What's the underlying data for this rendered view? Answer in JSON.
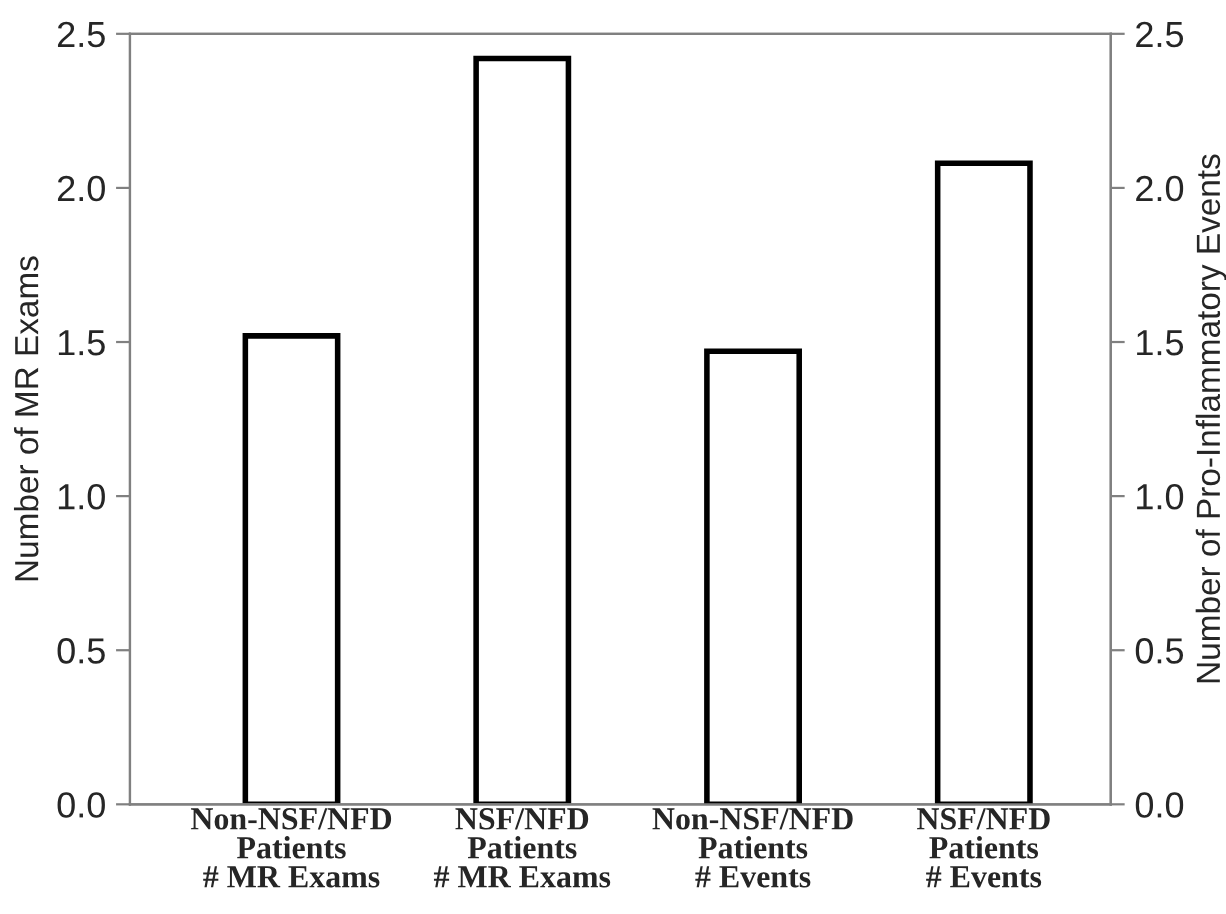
{
  "chart_data": {
    "type": "bar",
    "xlabel": null,
    "ylabel": "Number of MR Exams",
    "y2label": "Number of Pro-Inflammatory Events",
    "categories": [
      "Non-NSF/NFD\nPatients\n# MR Exams",
      "NSF/NFD\nPatients\n# MR Exams",
      "Non-NSF/NFD\nPatients\n# Events",
      "NSF/NFD\nPatients\n# Events"
    ],
    "series": [
      {
        "color": "#ffffff",
        "axis": "y",
        "values": [
          1.52,
          2.42,
          null,
          null
        ]
      },
      {
        "color": "#ffffff",
        "axis": "y2",
        "values": [
          null,
          null,
          1.47,
          2.08
        ]
      }
    ],
    "ylim": [
      0,
      2.5
    ],
    "yticks": [
      {
        "value": 0,
        "label": "0.0"
      },
      {
        "value": 0.5,
        "label": "0.5"
      },
      {
        "value": 1.0,
        "label": "1.0"
      },
      {
        "value": 1.5,
        "label": "1.5"
      },
      {
        "value": 2.0,
        "label": "2.0"
      },
      {
        "value": 2.5,
        "label": "2.5"
      }
    ],
    "y2lim": [
      0,
      2.5
    ],
    "y2ticks": [
      {
        "value": 0,
        "label": "0.0"
      },
      {
        "value": 0.5,
        "label": "0.5"
      },
      {
        "value": 1.0,
        "label": "1.0"
      },
      {
        "value": 1.5,
        "label": "1.5"
      },
      {
        "value": 2.0,
        "label": "2.0"
      },
      {
        "value": 2.5,
        "label": "2.5"
      }
    ],
    "grid": false,
    "legend": false
  }
}
